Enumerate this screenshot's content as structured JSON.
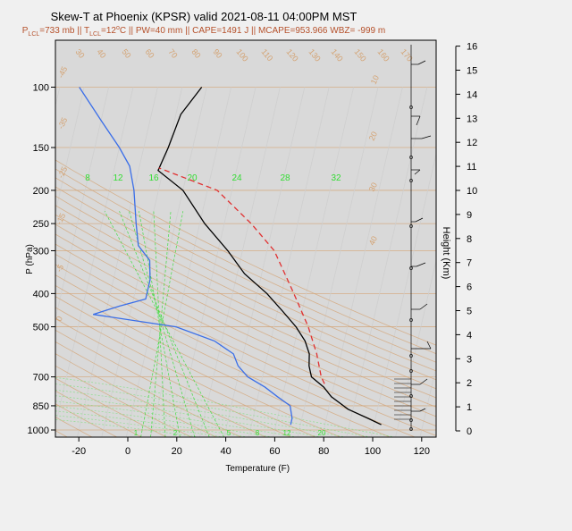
{
  "title": "Skew-T at Phoenix (KPSR) valid 2021-08-11 04:00PM MST",
  "subtitle_parts": [
    "P",
    "LCL",
    "=733 mb || T",
    "LCL",
    "=12",
    "o",
    "C || PW=40 mm || CAPE=1491 J || MCAPE=953.966 WBZ= -999 m"
  ],
  "colors": {
    "temperature": "#000000",
    "dewpoint": "#3a6ee8",
    "parcel": "#e03030",
    "dry_adiabat": "#d4a373",
    "moist_adiabat": "#7ee07e",
    "mixing_ratio": "#33dd33",
    "isotherm": "#cfcfcf",
    "isobar": "#d4a373",
    "subtitle": "#b5502a"
  },
  "chart_data": [
    {
      "type": "line",
      "title": "Skew-T at Phoenix (KPSR) valid 2021-08-11 04:00PM MST",
      "xlabel": "Temperature (F)",
      "ylabel": "P (hPa)",
      "x_ticks": [
        -20,
        0,
        20,
        40,
        60,
        80,
        100,
        120
      ],
      "y_ticks": [
        100,
        150,
        200,
        250,
        300,
        400,
        500,
        700,
        850,
        1000
      ],
      "xlim": [
        -27,
        125
      ],
      "ylim": [
        1050,
        100
      ],
      "y_scale": "log",
      "skewed": true,
      "grid": true,
      "series": [
        {
          "role": "temperature",
          "points": [
            [
              103,
              965
            ],
            [
              97,
              925
            ],
            [
              88,
              870
            ],
            [
              80,
              800
            ],
            [
              76,
              750
            ],
            [
              70,
              700
            ],
            [
              68,
              650
            ],
            [
              67,
              600
            ],
            [
              64,
              550
            ],
            [
              59,
              500
            ],
            [
              52,
              450
            ],
            [
              44,
              400
            ],
            [
              33,
              350
            ],
            [
              24,
              300
            ],
            [
              12,
              250
            ],
            [
              0,
              200
            ],
            [
              -12,
              175
            ],
            [
              -10,
              150
            ],
            [
              -8,
              120
            ],
            [
              -2,
              100
            ]
          ]
        },
        {
          "role": "dewpoint",
          "points": [
            [
              66,
              965
            ],
            [
              66,
              925
            ],
            [
              64,
              850
            ],
            [
              58,
              800
            ],
            [
              52,
              750
            ],
            [
              44,
              700
            ],
            [
              39,
              650
            ],
            [
              36,
              600
            ],
            [
              27,
              550
            ],
            [
              10,
              500
            ],
            [
              -25,
              460
            ],
            [
              -15,
              435
            ],
            [
              -5,
              415
            ],
            [
              -5,
              365
            ],
            [
              -7,
              320
            ],
            [
              -13,
              290
            ],
            [
              -16,
              250
            ],
            [
              -20,
              200
            ],
            [
              -24,
              170
            ],
            [
              -30,
              150
            ],
            [
              -40,
              125
            ],
            [
              -52,
              100
            ]
          ]
        },
        {
          "role": "parcel",
          "points": [
            [
              76,
              733
            ],
            [
              74,
              700
            ],
            [
              70,
              600
            ],
            [
              64,
              500
            ],
            [
              55,
              400
            ],
            [
              43,
              300
            ],
            [
              31,
              250
            ],
            [
              14,
              200
            ],
            [
              -12,
              172
            ]
          ]
        }
      ],
      "dry_adiabat_labels": [
        "30",
        "40",
        "50",
        "60",
        "70",
        "80",
        "90",
        "100",
        "110",
        "120",
        "130",
        "140",
        "150",
        "160",
        "170"
      ],
      "moist_adiabat_labels": [
        "-45",
        "-35",
        "-25",
        "-15",
        "-5",
        "0",
        "10",
        "20",
        "30",
        "40"
      ],
      "mixing_ratio_labels": [
        "8",
        "12",
        "16",
        "20",
        "24",
        "28",
        "32"
      ],
      "bottom_labels": [
        "1",
        "2",
        "5",
        "8",
        "12",
        "20"
      ],
      "height_axis": {
        "label": "Height (Km)",
        "ticks": [
          "0",
          "1",
          "2",
          "3",
          "4",
          "5",
          "6",
          "7",
          "8",
          "9",
          "10",
          "11",
          "12",
          "13",
          "14",
          "15",
          "16"
        ]
      }
    }
  ]
}
